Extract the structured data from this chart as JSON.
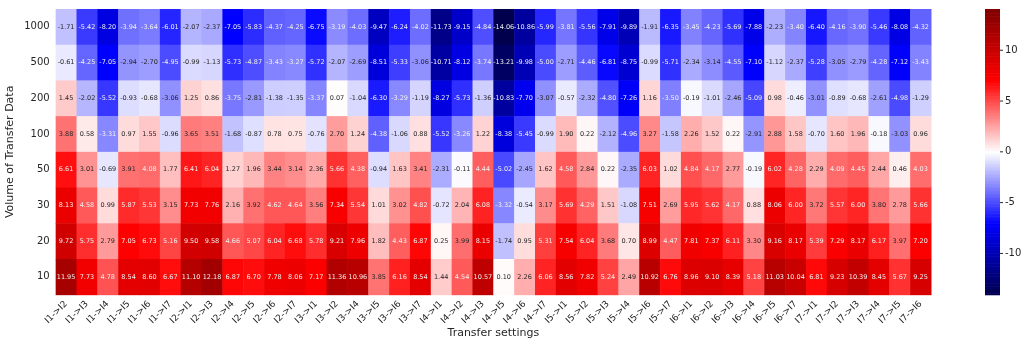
{
  "chart_data": {
    "type": "heatmap",
    "xlabel": "Transfer settings",
    "ylabel": "Volume of Transfer Data",
    "categories": [
      "I1->I2",
      "I1->I3",
      "I1->I4",
      "I1->I5",
      "I1->I6",
      "I1->I7",
      "I2->I1",
      "I2->I3",
      "I2->I4",
      "I2->I5",
      "I2->I6",
      "I2->I7",
      "I3->I1",
      "I3->I2",
      "I3->I4",
      "I3->I5",
      "I3->I6",
      "I3->I7",
      "I4->I1",
      "I4->I2",
      "I4->I3",
      "I4->I5",
      "I4->I6",
      "I4->I7",
      "I5->I1",
      "I5->I2",
      "I5->I3",
      "I5->I4",
      "I5->I6",
      "I5->I7",
      "I6->I1",
      "I6->I2",
      "I6->I3",
      "I6->I4",
      "I6->I5",
      "I6->I7",
      "I7->I1",
      "I7->I2",
      "I7->I3",
      "I7->I4",
      "I7->I5",
      "I7->I6"
    ],
    "y_categories": [
      "1000",
      "500",
      "200",
      "100",
      "50",
      "30",
      "20",
      "10"
    ],
    "cells": [
      [
        -1.71,
        -5.42,
        -8.2,
        -3.94,
        -3.64,
        -6.01,
        -2.07,
        -2.37,
        -7.05,
        -5.83,
        -4.37,
        -4.25,
        -6.75,
        -3.19,
        -4.03,
        -9.47,
        -6.24,
        -4.02,
        -11.73,
        -9.15,
        -4.84,
        -14.06,
        -10.86,
        -5.99,
        -3.81,
        -5.56,
        -7.91,
        -9.89,
        -1.91,
        -6.35,
        -3.45,
        -4.23,
        -5.69,
        -7.88,
        -2.23,
        -3.4,
        -6.4,
        -4.16,
        -3.9,
        -5.46,
        -8.08,
        -4.32
      ],
      [
        -0.61,
        -4.25,
        -7.05,
        -2.94,
        -2.7,
        -4.95,
        -0.99,
        -1.13,
        -5.73,
        -4.87,
        -3.43,
        -3.27,
        -5.72,
        -2.07,
        -2.69,
        -8.51,
        -5.33,
        -3.06,
        -10.71,
        -8.12,
        -3.74,
        -13.21,
        -9.98,
        -5.0,
        -2.71,
        -4.46,
        -6.81,
        -8.75,
        -0.99,
        -5.71,
        -2.34,
        -3.14,
        -4.55,
        -7.1,
        -1.12,
        -2.37,
        -5.28,
        -3.05,
        -2.79,
        -4.28,
        -7.12,
        -3.43
      ],
      [
        1.45,
        -2.02,
        -5.52,
        -0.93,
        -0.68,
        -3.06,
        1.25,
        0.86,
        -3.75,
        -2.81,
        -1.38,
        -1.35,
        -3.37,
        0.07,
        -1.04,
        -6.3,
        -3.29,
        -1.19,
        -8.27,
        -5.73,
        -1.36,
        -10.83,
        -7.7,
        -3.07,
        -0.57,
        -2.32,
        -4.8,
        -7.26,
        1.16,
        -3.5,
        -0.19,
        -1.01,
        -2.46,
        -5.09,
        0.98,
        -0.46,
        -3.01,
        -0.89,
        -0.68,
        -2.61,
        -4.98,
        -1.29
      ],
      [
        3.88,
        0.58,
        -3.31,
        0.97,
        1.55,
        -0.96,
        3.65,
        3.51,
        -1.68,
        -0.87,
        0.78,
        0.75,
        -0.76,
        2.7,
        1.24,
        -4.38,
        -1.06,
        0.88,
        -5.52,
        -3.26,
        1.22,
        -8.38,
        -5.45,
        -0.99,
        1.9,
        0.22,
        -2.12,
        -4.96,
        3.27,
        -1.58,
        2.26,
        1.52,
        0.22,
        -2.91,
        2.88,
        1.58,
        -0.7,
        1.6,
        1.96,
        -0.18,
        -3.03,
        0.96
      ],
      [
        6.61,
        3.01,
        -0.69,
        3.91,
        4.08,
        1.77,
        6.41,
        6.04,
        1.27,
        1.96,
        3.44,
        3.14,
        2.36,
        5.66,
        4.38,
        -0.94,
        1.63,
        3.41,
        -2.31,
        -0.11,
        4.44,
        -5.02,
        -2.45,
        1.62,
        4.58,
        2.84,
        0.22,
        -2.35,
        6.03,
        1.02,
        4.84,
        4.17,
        2.77,
        -0.19,
        6.02,
        4.28,
        2.29,
        4.09,
        4.45,
        2.44,
        0.46,
        4.03
      ],
      [
        8.13,
        4.58,
        0.99,
        5.87,
        5.53,
        3.15,
        7.73,
        7.76,
        2.16,
        3.92,
        4.62,
        4.64,
        3.56,
        7.34,
        5.54,
        1.01,
        3.02,
        4.82,
        -0.72,
        2.04,
        6.08,
        -3.32,
        -0.54,
        3.17,
        5.69,
        4.29,
        1.51,
        -1.08,
        7.51,
        2.69,
        5.95,
        5.62,
        4.17,
        0.88,
        8.06,
        6.0,
        3.72,
        5.57,
        6.0,
        3.8,
        2.78,
        5.66
      ],
      [
        9.72,
        5.75,
        2.79,
        7.05,
        6.73,
        5.16,
        9.5,
        9.58,
        4.66,
        5.07,
        6.04,
        6.68,
        5.78,
        9.21,
        7.96,
        1.82,
        4.43,
        6.87,
        0.25,
        3.99,
        8.15,
        -1.74,
        0.95,
        5.31,
        7.54,
        6.04,
        3.68,
        0.7,
        8.99,
        4.47,
        7.81,
        7.37,
        6.11,
        3.3,
        9.16,
        8.17,
        5.39,
        7.29,
        8.17,
        6.17,
        3.97,
        7.2
      ],
      [
        11.95,
        7.73,
        4.78,
        8.54,
        8.6,
        6.67,
        11.1,
        12.18,
        6.87,
        6.7,
        7.78,
        8.06,
        7.17,
        11.36,
        10.96,
        3.85,
        6.16,
        8.54,
        1.44,
        4.54,
        10.57,
        0.1,
        2.26,
        6.06,
        8.56,
        7.82,
        5.24,
        2.49,
        10.92,
        6.76,
        8.96,
        9.1,
        8.39,
        5.18,
        11.03,
        10.04,
        6.81,
        9.23,
        10.39,
        8.45,
        5.67,
        9.25
      ]
    ],
    "cell_labels": [
      [
        "-1.71",
        "-5.42",
        "-8.20",
        "-3.94",
        "-3.64",
        "-6.01",
        "-2.07",
        "-2.37",
        "-7.05",
        "-5.83",
        "-4.37",
        "-4.25",
        "-6.75",
        "-3.19",
        "-4.03",
        "-9.47",
        "-6.24",
        "-4.02",
        "-11.73",
        "-9.15",
        "-4.84",
        "-14.06",
        "-10.86",
        "-5.99",
        "-3.81",
        "-5.56",
        "-7.91",
        "-9.89",
        "-1.91",
        "-6.35",
        "-3.45",
        "-4.23",
        "-5.69",
        "-7.88",
        "-2.23",
        "-3.40",
        "-6.40",
        "-4.16",
        "-3.90",
        "-5.46",
        "-8.08",
        "-4.32"
      ],
      [
        "-0.61",
        "-4.25",
        "-7.05",
        "-2.94",
        "-2.70",
        "-4.95",
        "-0.99",
        "-1.13",
        "-5.73",
        "-4.87",
        "-3.43",
        "-3.27",
        "-5.72",
        "-2.07",
        "-2.69",
        "-8.51",
        "-5.33",
        "-3.06",
        "-10.71",
        "-8.12",
        "-3.74",
        "-13.21",
        "-9.98",
        "-5.00",
        "-2.71",
        "-4.46",
        "-6.81",
        "-8.75",
        "-0.99",
        "-5.71",
        "-2.34",
        "-3.14",
        "-4.55",
        "-7.10",
        "-1.12",
        "-2.37",
        "-5.28",
        "-3.05",
        "-2.79",
        "-4.28",
        "-7.12",
        "-3.43"
      ],
      [
        "1.45",
        "-2.02",
        "-5.52",
        "-0.93",
        "-0.68",
        "-3.06",
        "1.25",
        "0.86",
        "-3.75",
        "-2.81",
        "-1.38",
        "-1.35",
        "-3.37",
        "0.07",
        "-1.04",
        "-6.30",
        "-3.29",
        "-1.19",
        "-8.27",
        "-5.73",
        "-1.36",
        "-10.83",
        "-7.70",
        "-3.07",
        "-0.57",
        "-2.32",
        "-4.80",
        "-7.26",
        "1.16",
        "-3.50",
        "-0.19",
        "-1.01",
        "-2.46",
        "-5.09",
        "0.98",
        "-0.46",
        "-3.01",
        "-0.89",
        "-0.68",
        "-2.61",
        "-4.98",
        "-1.29"
      ],
      [
        "3.88",
        "0.58",
        "-3.31",
        "0.97",
        "1.55",
        "-0.96",
        "3.65",
        "3.51",
        "-1.68",
        "-0.87",
        "0.78",
        "0.75",
        "-0.76",
        "2.70",
        "1.24",
        "-4.38",
        "-1.06",
        "0.88",
        "-5.52",
        "-3.26",
        "1.22",
        "-8.38",
        "-5.45",
        "-0.99",
        "1.90",
        "0.22",
        "-2.12",
        "-4.96",
        "3.27",
        "-1.58",
        "2.26",
        "1.52",
        "0.22",
        "-2.91",
        "2.88",
        "1.58",
        "-0.70",
        "1.60",
        "1.96",
        "-0.18",
        "-3.03",
        "0.96"
      ],
      [
        "6.61",
        "3.01",
        "-0.69",
        "3.91",
        "4.08",
        "1.77",
        "6.41",
        "6.04",
        "1.27",
        "1.96",
        "3.44",
        "3.14",
        "2.36",
        "5.66",
        "4.38",
        "-0.94",
        "1.63",
        "3.41",
        "-2.31",
        "-0.11",
        "4.44",
        "-5.02",
        "-2.45",
        "1.62",
        "4.58",
        "2.84",
        "0.22",
        "-2.35",
        "6.03",
        "1.02",
        "4.84",
        "4.17",
        "2.77",
        "-0.19",
        "6.02",
        "4.28",
        "2.29",
        "4.09",
        "4.45",
        "2.44",
        "0.46",
        "4.03"
      ],
      [
        "8.13",
        "4.58",
        "0.99",
        "5.87",
        "5.53",
        "3.15",
        "7.73",
        "7.76",
        "2.16",
        "3.92",
        "4.62",
        "4.64",
        "3.56",
        "7.34",
        "5.54",
        "1.01",
        "3.02",
        "4.82",
        "-0.72",
        "2.04",
        "6.08",
        "-3.32",
        "-0.54",
        "3.17",
        "5.69",
        "4.29",
        "1.51",
        "-1.08",
        "7.51",
        "2.69",
        "5.95",
        "5.62",
        "4.17",
        "0.88",
        "8.06",
        "6.00",
        "3.72",
        "5.57",
        "6.00",
        "3.80",
        "2.78",
        "5.66"
      ],
      [
        "9.72",
        "5.75",
        "2.79",
        "7.05",
        "6.73",
        "5.16",
        "9.50",
        "9.58",
        "4.66",
        "5.07",
        "6.04",
        "6.68",
        "5.78",
        "9.21",
        "7.96",
        "1.82",
        "4.43",
        "6.87",
        "0.25",
        "3.99",
        "8.15",
        "-1.74",
        "0.95",
        "5.31",
        "7.54",
        "6.04",
        "3.68",
        "0.70",
        "8.99",
        "4.47",
        "7.81",
        "7.37",
        "6.11",
        "3.30",
        "9.16",
        "8.17",
        "5.39",
        "7.29",
        "8.17",
        "6.17",
        "3.97",
        "7.20"
      ],
      [
        "11.95",
        "7.73",
        "4.78",
        "8.54",
        "8.60",
        "6.67",
        "11.10",
        "12.18",
        "6.87",
        "6.70",
        "7.78",
        "8.06",
        "7.17",
        "11.36",
        "10.96",
        "3.85",
        "6.16",
        "8.54",
        "1.44",
        "4.54",
        "10.57",
        "0.10",
        "2.26",
        "6.06",
        "8.56",
        "7.82",
        "5.24",
        "2.49",
        "10.92",
        "6.76",
        "8.96",
        "9.10",
        "8.39",
        "5.18",
        "11.03",
        "10.04",
        "6.81",
        "9.23",
        "10.39",
        "8.45",
        "5.67",
        "9.25"
      ]
    ],
    "data_labels": true,
    "clim": [
      -14.06,
      14.06
    ],
    "cticks": [
      -10,
      -5,
      0,
      5,
      10
    ]
  }
}
